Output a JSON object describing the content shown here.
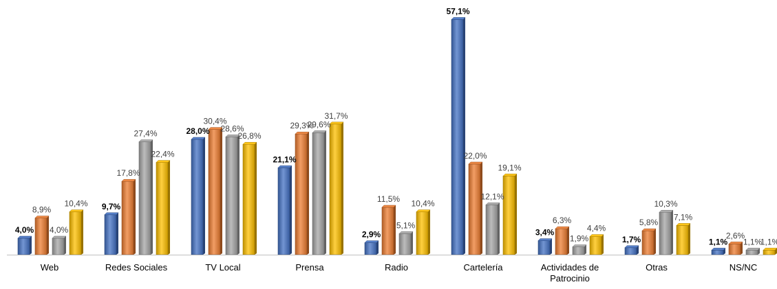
{
  "chart_data": {
    "type": "bar",
    "title": "",
    "xlabel": "",
    "ylabel": "",
    "ylim": [
      0,
      57.1
    ],
    "grid": false,
    "legend": "none",
    "categories": [
      "Web",
      "Redes Sociales",
      "TV Local",
      "Prensa",
      "Radio",
      "Cartelería",
      "Actividades de\nPatrocinio",
      "Otras",
      "NS/NC"
    ],
    "series": [
      {
        "color": "#4472C4",
        "values": [
          4.0,
          9.7,
          28.0,
          21.1,
          2.9,
          57.1,
          3.4,
          1.7,
          1.1
        ]
      },
      {
        "color": "#ED7D31",
        "values": [
          8.9,
          17.8,
          30.4,
          29.3,
          11.5,
          22.0,
          6.3,
          5.8,
          2.6
        ]
      },
      {
        "color": "#A5A5A5",
        "values": [
          4.0,
          27.4,
          28.6,
          29.6,
          5.1,
          12.1,
          1.9,
          10.3,
          1.1
        ]
      },
      {
        "color": "#FFC000",
        "values": [
          10.4,
          22.4,
          26.8,
          31.7,
          10.4,
          19.1,
          4.4,
          7.1,
          1.1
        ]
      }
    ],
    "data_labels": [
      [
        "4,0%",
        "9,7%",
        "28,0%",
        "21,1%",
        "2,9%",
        "57,1%",
        "3,4%",
        "1,7%",
        "1,1%"
      ],
      [
        "8,9%",
        "17,8%",
        "30,4%",
        "29,3%",
        "11,5%",
        "22,0%",
        "6,3%",
        "5,8%",
        "2,6%"
      ],
      [
        "4,0%",
        "27,4%",
        "28,6%",
        "29,6%",
        "5,1%",
        "12,1%",
        "1,9%",
        "10,3%",
        "1,1%"
      ],
      [
        "10,4%",
        "22,4%",
        "26,8%",
        "31,7%",
        "10,4%",
        "19,1%",
        "4,4%",
        "7,1%",
        "1,1%"
      ]
    ]
  }
}
